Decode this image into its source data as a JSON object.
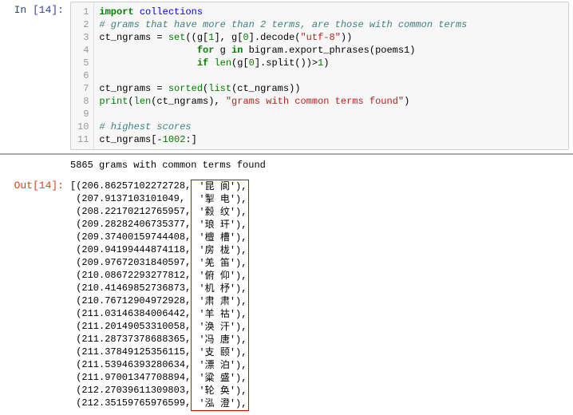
{
  "input": {
    "prompt_label": "In [14]:",
    "code_lines": [
      {
        "n": 1,
        "tokens": [
          {
            "t": "import",
            "c": "kw"
          },
          {
            "t": " "
          },
          {
            "t": "collections",
            "c": "mod"
          }
        ]
      },
      {
        "n": 2,
        "tokens": [
          {
            "t": "# grams that have more than 2 terms, are those with common terms",
            "c": "com"
          }
        ]
      },
      {
        "n": 3,
        "tokens": [
          {
            "t": "ct_ngrams = "
          },
          {
            "t": "set",
            "c": "builtin"
          },
          {
            "t": "((g["
          },
          {
            "t": "1",
            "c": "num"
          },
          {
            "t": "], g["
          },
          {
            "t": "0",
            "c": "num"
          },
          {
            "t": "].decode("
          },
          {
            "t": "\"utf-8\"",
            "c": "str"
          },
          {
            "t": "))"
          }
        ]
      },
      {
        "n": 4,
        "tokens": [
          {
            "t": "                 "
          },
          {
            "t": "for",
            "c": "kw"
          },
          {
            "t": " g "
          },
          {
            "t": "in",
            "c": "kw"
          },
          {
            "t": " bigram.export_phrases(poems1)"
          }
        ]
      },
      {
        "n": 5,
        "tokens": [
          {
            "t": "                 "
          },
          {
            "t": "if",
            "c": "kw"
          },
          {
            "t": " "
          },
          {
            "t": "len",
            "c": "builtin"
          },
          {
            "t": "(g["
          },
          {
            "t": "0",
            "c": "num"
          },
          {
            "t": "].split())>"
          },
          {
            "t": "1",
            "c": "num"
          },
          {
            "t": ")"
          }
        ]
      },
      {
        "n": 6,
        "tokens": [
          {
            "t": ""
          }
        ]
      },
      {
        "n": 7,
        "tokens": [
          {
            "t": "ct_ngrams = "
          },
          {
            "t": "sorted",
            "c": "builtin"
          },
          {
            "t": "("
          },
          {
            "t": "list",
            "c": "builtin"
          },
          {
            "t": "(ct_ngrams))"
          }
        ]
      },
      {
        "n": 8,
        "tokens": [
          {
            "t": "print",
            "c": "builtin"
          },
          {
            "t": "("
          },
          {
            "t": "len",
            "c": "builtin"
          },
          {
            "t": "(ct_ngrams), "
          },
          {
            "t": "\"grams with common terms found\"",
            "c": "str"
          },
          {
            "t": ")"
          }
        ]
      },
      {
        "n": 9,
        "tokens": [
          {
            "t": ""
          }
        ]
      },
      {
        "n": 10,
        "tokens": [
          {
            "t": "# highest scores",
            "c": "com"
          }
        ]
      },
      {
        "n": 11,
        "tokens": [
          {
            "t": "ct_ngrams[-"
          },
          {
            "t": "1002",
            "c": "num"
          },
          {
            "t": ":]"
          }
        ]
      }
    ]
  },
  "stdout": "5865 grams with common terms found",
  "output": {
    "prompt_label": "Out[14]:",
    "tuples": [
      {
        "num": "206.86257102272728",
        "text": "'昆 阆'),"
      },
      {
        "num": "207.9137103101049",
        "text": "'掣 电'),"
      },
      {
        "num": "208.22170212765957",
        "text": "'縠 纹'),"
      },
      {
        "num": "209.28282406735377",
        "text": "'琅 玕'),"
      },
      {
        "num": "209.37400159744408",
        "text": "'檀 槽'),"
      },
      {
        "num": "209.94199444874118",
        "text": "'房 栊'),"
      },
      {
        "num": "209.97672031840597",
        "text": "'羌 笛'),"
      },
      {
        "num": "210.08672293277812",
        "text": "'俯 仰'),"
      },
      {
        "num": "210.41469852736873",
        "text": "'机 杼'),"
      },
      {
        "num": "210.76712904972928",
        "text": "'肃 肃'),"
      },
      {
        "num": "211.03146384006442",
        "text": "'羊 祜'),"
      },
      {
        "num": "211.20149053310058",
        "text": "'涣 汗'),"
      },
      {
        "num": "211.28737378688365",
        "text": "'冯 唐'),"
      },
      {
        "num": "211.37849125356115",
        "text": "'支 颐'),"
      },
      {
        "num": "211.53946393280634",
        "text": "'漂 泊'),"
      },
      {
        "num": "211.97001347708894",
        "text": "'粱 盛'),"
      },
      {
        "num": "212.27039611309803",
        "text": "'轮 奂'),"
      },
      {
        "num": "212.35159765976599",
        "text": "'泓 澄'),"
      }
    ]
  },
  "colors": {
    "in_prompt": "#303F9F",
    "out_prompt": "#D84315",
    "code_bg": "#f7f7f7",
    "border": "#cfcfcf",
    "highlight_box": "#dd0000"
  }
}
